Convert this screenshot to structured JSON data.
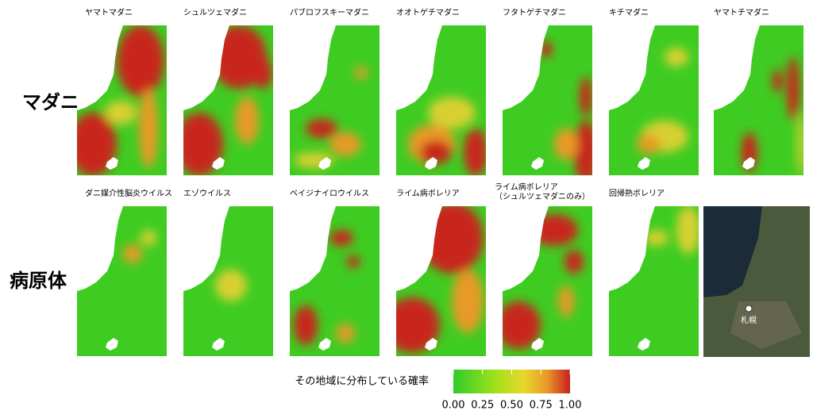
{
  "row_labels": [
    "マダニ",
    "病原体"
  ],
  "rows": [
    [
      "ヤマトマダニ",
      "シュルツェマダニ",
      "パブロフスキーマダニ",
      "オオトゲチマダニ",
      "フタトゲチマダニ",
      "キチマダニ",
      "ヤマトチマダニ"
    ],
    [
      "ダニ媒介性脳炎ウイルス",
      "エゾウイルス",
      "ベイジナイロウイルス",
      "ライム病ボレリア",
      [
        "ライム病ボレリア",
        "（シュルツェマダニのみ）"
      ],
      "回帰熱ボレリア"
    ]
  ],
  "reference_map": {
    "label": "札幌"
  },
  "colorbar": {
    "label": "その地域に分布している確率",
    "lim": [
      0,
      1
    ],
    "ticks": [
      {
        "value": 0,
        "label": "0.00"
      },
      {
        "value": 0.25,
        "label": "0.25"
      },
      {
        "value": 0.5,
        "label": "0.50"
      },
      {
        "value": 0.75,
        "label": "0.75"
      },
      {
        "value": 1,
        "label": "1.00"
      }
    ]
  }
}
